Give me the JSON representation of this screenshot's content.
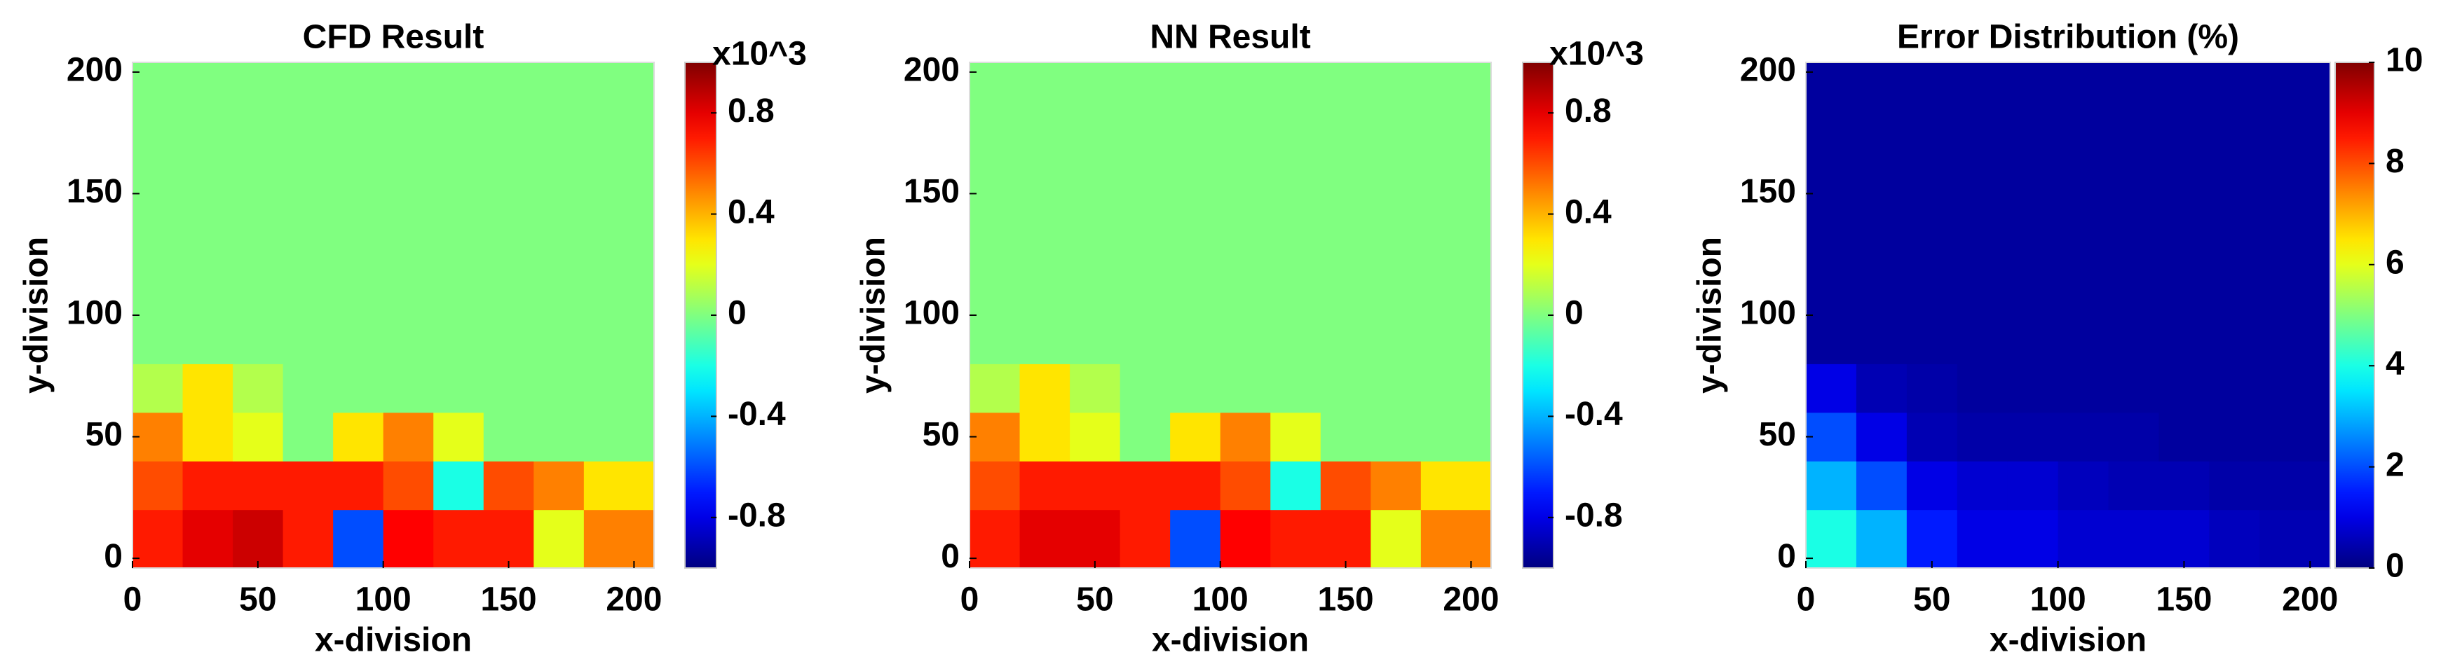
{
  "chart_data": [
    {
      "type": "heatmap",
      "title": "CFD Result",
      "xlabel": "x-division",
      "ylabel": "y-division",
      "colormap": "jet",
      "xlim": [
        0,
        208
      ],
      "ylim": [
        -4,
        204
      ],
      "xticks": [
        0,
        50,
        100,
        150,
        200
      ],
      "yticks": [
        0,
        50,
        100,
        150,
        200
      ],
      "xbins": [
        0,
        20,
        40,
        60,
        80,
        100,
        120,
        140,
        160,
        180,
        208
      ],
      "ybins": [
        -4,
        20,
        40,
        60,
        80,
        100,
        120,
        140,
        160,
        180,
        204
      ],
      "z": [
        [
          0.7,
          0.8,
          0.85,
          0.7,
          -0.6,
          0.75,
          0.7,
          0.7,
          0.2,
          0.5
        ],
        [
          0.6,
          0.7,
          0.7,
          0.7,
          0.7,
          0.6,
          -0.2,
          0.6,
          0.5,
          0.3
        ],
        [
          0.5,
          0.3,
          0.2,
          0,
          0.3,
          0.5,
          0.2,
          0,
          0,
          0
        ],
        [
          0.1,
          0.3,
          0.1,
          0,
          0,
          0,
          0,
          0,
          0,
          0
        ],
        [
          0,
          0,
          0,
          0,
          0,
          0,
          0,
          0,
          0,
          0
        ],
        [
          0,
          0,
          0,
          0,
          0,
          0,
          0,
          0,
          0,
          0
        ],
        [
          0,
          0,
          0,
          0,
          0,
          0,
          0,
          0,
          0,
          0
        ],
        [
          0,
          0,
          0,
          0,
          0,
          0,
          0,
          0,
          0,
          0
        ],
        [
          0,
          0,
          0,
          0,
          0,
          0,
          0,
          0,
          0,
          0
        ],
        [
          0,
          0,
          0,
          0,
          0,
          0,
          0,
          0,
          0,
          0
        ]
      ],
      "clim": [
        -1,
        1
      ],
      "cticks": [
        -0.8,
        -0.4,
        0,
        0.4,
        0.8
      ],
      "clabel": "x10^3"
    },
    {
      "type": "heatmap",
      "title": "NN Result",
      "xlabel": "x-division",
      "ylabel": "y-division",
      "colormap": "jet",
      "xlim": [
        0,
        208
      ],
      "ylim": [
        -4,
        204
      ],
      "xticks": [
        0,
        50,
        100,
        150,
        200
      ],
      "yticks": [
        0,
        50,
        100,
        150,
        200
      ],
      "xbins": [
        0,
        20,
        40,
        60,
        80,
        100,
        120,
        140,
        160,
        180,
        208
      ],
      "ybins": [
        -4,
        20,
        40,
        60,
        80,
        100,
        120,
        140,
        160,
        180,
        204
      ],
      "z": [
        [
          0.7,
          0.8,
          0.8,
          0.7,
          -0.6,
          0.75,
          0.7,
          0.7,
          0.2,
          0.5
        ],
        [
          0.6,
          0.7,
          0.7,
          0.7,
          0.7,
          0.6,
          -0.2,
          0.6,
          0.5,
          0.3
        ],
        [
          0.5,
          0.3,
          0.2,
          0,
          0.3,
          0.5,
          0.2,
          0,
          0,
          0
        ],
        [
          0.1,
          0.3,
          0.1,
          0,
          0,
          0,
          0,
          0,
          0,
          0
        ],
        [
          0,
          0,
          0,
          0,
          0,
          0,
          0,
          0,
          0,
          0
        ],
        [
          0,
          0,
          0,
          0,
          0,
          0,
          0,
          0,
          0,
          0
        ],
        [
          0,
          0,
          0,
          0,
          0,
          0,
          0,
          0,
          0,
          0
        ],
        [
          0,
          0,
          0,
          0,
          0,
          0,
          0,
          0,
          0,
          0
        ],
        [
          0,
          0,
          0,
          0,
          0,
          0,
          0,
          0,
          0,
          0
        ],
        [
          0,
          0,
          0,
          0,
          0,
          0,
          0,
          0,
          0,
          0
        ]
      ],
      "clim": [
        -1,
        1
      ],
      "cticks": [
        -0.8,
        -0.4,
        0,
        0.4,
        0.8
      ],
      "clabel": "x10^3"
    },
    {
      "type": "heatmap",
      "title": "Error Distribution (%)",
      "xlabel": "x-division",
      "ylabel": "y-division",
      "colormap": "jet",
      "xlim": [
        0,
        208
      ],
      "ylim": [
        -4,
        204
      ],
      "xticks": [
        0,
        50,
        100,
        150,
        200
      ],
      "yticks": [
        0,
        50,
        100,
        150,
        200
      ],
      "xbins": [
        0,
        20,
        40,
        60,
        80,
        100,
        120,
        140,
        160,
        180,
        208
      ],
      "ybins": [
        -4,
        20,
        40,
        60,
        80,
        100,
        120,
        140,
        160,
        180,
        204
      ],
      "z": [
        [
          4,
          3,
          1.5,
          1,
          1,
          0.8,
          0.8,
          0.8,
          0.6,
          0.5
        ],
        [
          3,
          2,
          1,
          0.8,
          0.8,
          0.6,
          0.5,
          0.5,
          0.4,
          0.4
        ],
        [
          2,
          1,
          0.5,
          0.4,
          0.4,
          0.4,
          0.4,
          0.3,
          0.3,
          0.3
        ],
        [
          1,
          0.5,
          0.4,
          0.3,
          0.3,
          0.3,
          0.3,
          0.3,
          0.3,
          0.3
        ],
        [
          0.3,
          0.3,
          0.3,
          0.3,
          0.3,
          0.3,
          0.3,
          0.3,
          0.3,
          0.3
        ],
        [
          0.3,
          0.3,
          0.3,
          0.3,
          0.3,
          0.3,
          0.3,
          0.3,
          0.3,
          0.3
        ],
        [
          0.3,
          0.3,
          0.3,
          0.3,
          0.3,
          0.3,
          0.3,
          0.3,
          0.3,
          0.3
        ],
        [
          0.3,
          0.3,
          0.3,
          0.3,
          0.3,
          0.3,
          0.3,
          0.3,
          0.3,
          0.3
        ],
        [
          0.3,
          0.3,
          0.3,
          0.3,
          0.3,
          0.3,
          0.3,
          0.3,
          0.3,
          0.3
        ],
        [
          0.3,
          0.3,
          0.3,
          0.3,
          0.3,
          0.3,
          0.3,
          0.3,
          0.3,
          0.3
        ]
      ],
      "clim": [
        0,
        10
      ],
      "cticks": [
        0,
        2,
        4,
        6,
        8,
        10
      ]
    }
  ]
}
